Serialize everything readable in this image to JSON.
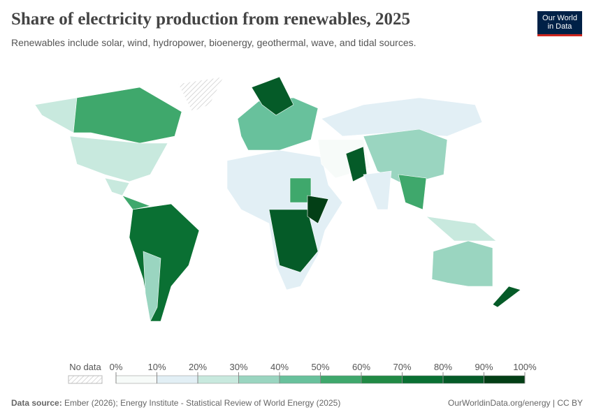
{
  "header": {
    "title": "Share of electricity production from renewables, 2025",
    "subtitle": "Renewables include solar, wind, hydropower, bioenergy, geothermal, wave, and tidal sources.",
    "logo": [
      "Our World",
      "in Data"
    ]
  },
  "legend": {
    "no_data": "No data",
    "ticks": [
      "0%",
      "10%",
      "20%",
      "30%",
      "40%",
      "50%",
      "60%",
      "70%",
      "80%",
      "90%",
      "100%"
    ],
    "colors": [
      "#f7fbf9",
      "#e2eff5",
      "#c8e9de",
      "#9ad5c0",
      "#68c19c",
      "#3fa86c",
      "#218a45",
      "#0a7033",
      "#055b28",
      "#033f16"
    ]
  },
  "footer": {
    "source_label": "Data source:",
    "source": "Ember (2026); Energy Institute - Statistical Review of World Energy (2025)",
    "url": "OurWorldinData.org/energy | CC BY"
  }
}
